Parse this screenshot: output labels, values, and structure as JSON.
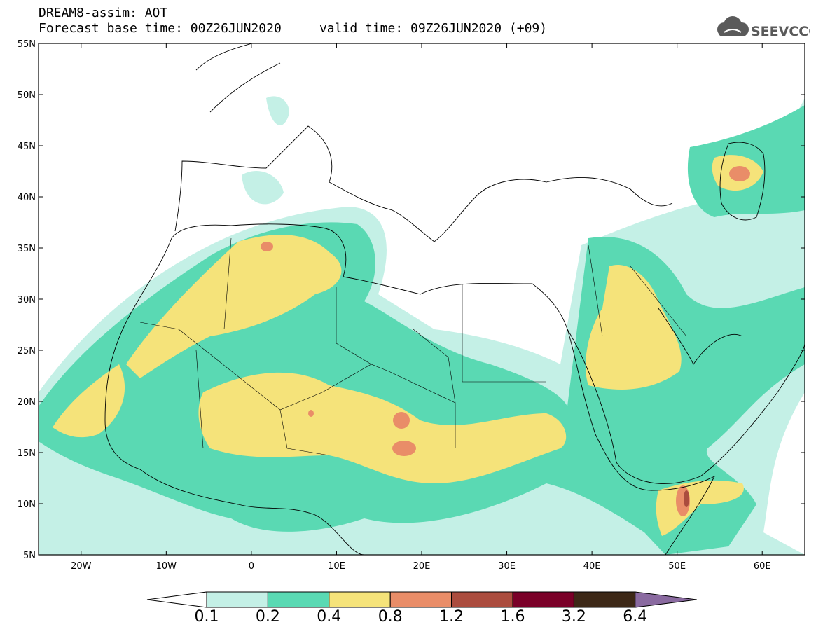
{
  "header": {
    "title": "DREAM8-assim: AOT",
    "subtitle_base": "Forecast base time: 00Z26JUN2020",
    "subtitle_valid": "valid time: 09Z26JUN2020 (+09)",
    "logo_text": "SEEVCCC"
  },
  "map": {
    "lat_labels": [
      "55N",
      "50N",
      "45N",
      "40N",
      "35N",
      "30N",
      "25N",
      "20N",
      "15N",
      "10N",
      "5N"
    ],
    "lon_labels": [
      "20W",
      "10W",
      "0",
      "10E",
      "20E",
      "30E",
      "40E",
      "50E",
      "60E"
    ],
    "lon_range": [
      -25,
      65
    ],
    "lat_range": [
      5,
      55
    ]
  },
  "colorbar": {
    "labels": [
      "0.1",
      "0.2",
      "0.4",
      "0.8",
      "1.2",
      "1.6",
      "3.2",
      "6.4"
    ],
    "colors": [
      "#ffffff",
      "#c4f0e6",
      "#5ad9b3",
      "#f5e37a",
      "#e98d68",
      "#ab4c3e",
      "#7a0028",
      "#3d2817",
      "#8a6aa0"
    ]
  }
}
